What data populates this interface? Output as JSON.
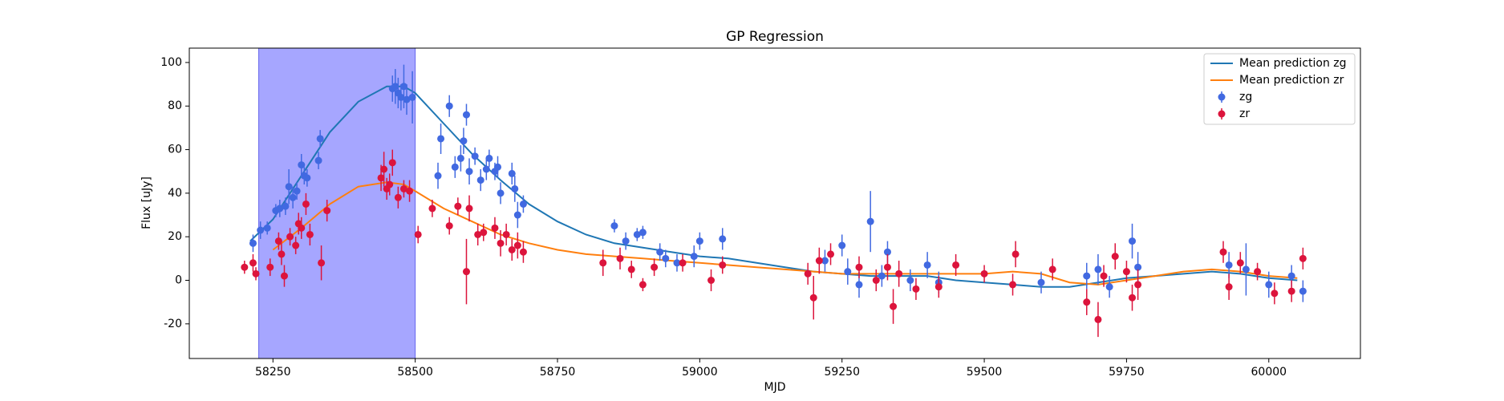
{
  "chart_data": {
    "type": "scatter",
    "title": "GP Regression",
    "xlabel": "MJD",
    "ylabel": "Flux [uJy]",
    "xlim": [
      58103,
      60161
    ],
    "ylim": [
      -35.9,
      106.6
    ],
    "xticks": [
      58250,
      58500,
      58750,
      59000,
      59250,
      59500,
      59750,
      60000
    ],
    "yticks": [
      -20,
      0,
      20,
      40,
      60,
      80,
      100
    ],
    "span": [
      58225,
      58500
    ],
    "span_color": "#a6a6ff",
    "legend": "upper right",
    "lines": [
      {
        "name": "Mean prediction zg",
        "color": "#1f77b4",
        "x": [
          58210,
          58250,
          58300,
          58350,
          58400,
          58450,
          58480,
          58500,
          58550,
          58600,
          58650,
          58700,
          58750,
          58800,
          58850,
          58900,
          58950,
          59000,
          59050,
          59100,
          59150,
          59200,
          59250,
          59300,
          59350,
          59400,
          59450,
          59500,
          59550,
          59600,
          59650,
          59700,
          59750,
          59800,
          59850,
          59900,
          59950,
          60000,
          60050
        ],
        "values": [
          18,
          28,
          48,
          68,
          82,
          89,
          89,
          86,
          72,
          58,
          46,
          35,
          27,
          21,
          17,
          15,
          13,
          11,
          10,
          8,
          6,
          4,
          3,
          2,
          2,
          2,
          0,
          -1,
          -2,
          -3,
          -3,
          -1,
          1,
          2,
          3,
          4,
          3,
          1,
          0
        ]
      },
      {
        "name": "Mean prediction zr",
        "color": "#ff7f0e",
        "x": [
          58250,
          58300,
          58350,
          58400,
          58450,
          58480,
          58500,
          58550,
          58600,
          58650,
          58700,
          58750,
          58800,
          58850,
          58900,
          58950,
          59000,
          59050,
          59100,
          59150,
          59200,
          59250,
          59300,
          59350,
          59400,
          59450,
          59500,
          59550,
          59600,
          59650,
          59700,
          59750,
          59800,
          59850,
          59900,
          59950,
          60000,
          60050
        ],
        "values": [
          14,
          24,
          35,
          43,
          45,
          44,
          41,
          33,
          27,
          21,
          17,
          14,
          12,
          11,
          10,
          9,
          8,
          7,
          6,
          5,
          4,
          3,
          3,
          3,
          3,
          3,
          3,
          4,
          3,
          -1,
          -2,
          0,
          2,
          4,
          5,
          4,
          2,
          1
        ]
      }
    ],
    "series": [
      {
        "name": "zg",
        "color": "#4169e1",
        "x": [
          58215,
          58228,
          58240,
          58255,
          58262,
          58272,
          58278,
          58285,
          58292,
          58300,
          58305,
          58310,
          58330,
          58333,
          58460,
          58465,
          58470,
          58475,
          58480,
          58485,
          58495,
          58540,
          58545,
          58560,
          58570,
          58580,
          58585,
          58590,
          58595,
          58605,
          58615,
          58625,
          58630,
          58640,
          58645,
          58650,
          58670,
          58675,
          58680,
          58690,
          58850,
          58870,
          58890,
          58900,
          58930,
          58940,
          58960,
          58990,
          59000,
          59040,
          59220,
          59250,
          59260,
          59280,
          59300,
          59320,
          59330,
          59370,
          59400,
          59420,
          59600,
          59680,
          59700,
          59720,
          59760,
          59770,
          59930,
          59960,
          60000,
          60040,
          60060
        ],
        "values": [
          17,
          23,
          24,
          32,
          33,
          34,
          43,
          38,
          41,
          53,
          48,
          47,
          55,
          65,
          88,
          89,
          86,
          84,
          89,
          83,
          84,
          48,
          65,
          80,
          52,
          56,
          64,
          76,
          50,
          57,
          46,
          51,
          56,
          50,
          52,
          40,
          49,
          42,
          30,
          35,
          25,
          18,
          21,
          22,
          13,
          10,
          8,
          11,
          18,
          19,
          9,
          16,
          4,
          -2,
          27,
          2,
          13,
          0,
          7,
          -1,
          -1,
          2,
          5,
          -3,
          18,
          6,
          7,
          5,
          -2,
          2,
          -5
        ],
        "errors": [
          4,
          4,
          3,
          3,
          4,
          4,
          8,
          5,
          4,
          5,
          4,
          4,
          4,
          4,
          6,
          8,
          7,
          6,
          10,
          7,
          12,
          6,
          7,
          5,
          5,
          6,
          6,
          5,
          6,
          4,
          5,
          5,
          4,
          4,
          5,
          5,
          5,
          6,
          6,
          4,
          3,
          4,
          3,
          3,
          4,
          4,
          4,
          5,
          4,
          5,
          5,
          5,
          6,
          6,
          14,
          5,
          5,
          5,
          6,
          5,
          5,
          6,
          7,
          5,
          8,
          7,
          6,
          12,
          6,
          5,
          5
        ]
      },
      {
        "name": "zr",
        "color": "#dc143c",
        "x": [
          58200,
          58215,
          58220,
          58245,
          58260,
          58265,
          58270,
          58280,
          58290,
          58295,
          58300,
          58308,
          58315,
          58335,
          58345,
          58440,
          58445,
          58450,
          58455,
          58460,
          58470,
          58480,
          58490,
          58505,
          58530,
          58560,
          58575,
          58590,
          58595,
          58610,
          58620,
          58640,
          58650,
          58660,
          58670,
          58680,
          58690,
          58830,
          58860,
          58880,
          58900,
          58920,
          58970,
          59020,
          59040,
          59190,
          59200,
          59210,
          59230,
          59280,
          59310,
          59330,
          59340,
          59350,
          59380,
          59420,
          59450,
          59500,
          59550,
          59555,
          59620,
          59680,
          59700,
          59710,
          59730,
          59750,
          59760,
          59770,
          59920,
          59930,
          59950,
          59980,
          60010,
          60040,
          60060
        ],
        "values": [
          6,
          8,
          3,
          6,
          18,
          12,
          2,
          20,
          16,
          26,
          24,
          35,
          21,
          8,
          32,
          47,
          51,
          42,
          44,
          54,
          38,
          42,
          41,
          21,
          33,
          25,
          34,
          4,
          33,
          21,
          22,
          24,
          17,
          21,
          14,
          16,
          13,
          8,
          10,
          5,
          -2,
          6,
          8,
          0,
          7,
          3,
          -8,
          9,
          12,
          6,
          0,
          6,
          -12,
          3,
          -4,
          -3,
          7,
          3,
          -2,
          12,
          5,
          -10,
          -18,
          2,
          11,
          4,
          -8,
          -2,
          13,
          -3,
          8,
          4,
          -6,
          -5,
          10
        ],
        "errors": [
          3,
          4,
          3,
          4,
          4,
          5,
          5,
          4,
          4,
          5,
          5,
          5,
          5,
          8,
          5,
          6,
          8,
          5,
          5,
          6,
          5,
          4,
          5,
          4,
          4,
          4,
          4,
          15,
          6,
          5,
          4,
          5,
          6,
          5,
          5,
          6,
          5,
          6,
          5,
          4,
          3,
          4,
          4,
          5,
          4,
          5,
          10,
          6,
          5,
          5,
          5,
          6,
          8,
          6,
          5,
          5,
          5,
          4,
          5,
          6,
          5,
          6,
          8,
          5,
          6,
          5,
          6,
          7,
          5,
          6,
          5,
          4,
          5,
          5,
          5
        ]
      }
    ]
  }
}
